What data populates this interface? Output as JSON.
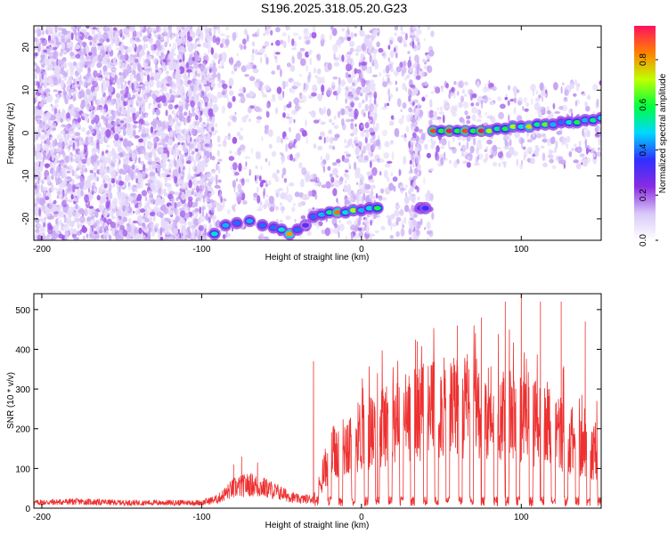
{
  "title": "S196.2025.318.05.20.G23",
  "chart_data": [
    {
      "type": "heatmap",
      "xlabel": "Height of straight line (km)",
      "ylabel": "Frequency (Hz)",
      "xlim": [
        -205,
        150
      ],
      "ylim": [
        -25,
        25
      ],
      "xticks": [
        -200,
        -100,
        0,
        100
      ],
      "yticks": [
        -20,
        -10,
        0,
        10,
        20
      ],
      "colorbar": {
        "label": "Normalized spectral amplitude",
        "range": [
          0.0,
          0.95
        ],
        "ticks": [
          0.0,
          0.2,
          0.4,
          0.6,
          0.8
        ],
        "colors": [
          "#ffffff",
          "#d8c8f8",
          "#8a2be2",
          "#3030ff",
          "#00d8ff",
          "#00ff40",
          "#c0ff00",
          "#ff8000",
          "#ff1060"
        ]
      },
      "noise_regions": [
        {
          "x": [
            -205,
            -92
          ],
          "y": [
            -25,
            25
          ],
          "density": 1.0
        },
        {
          "x": [
            -92,
            45
          ],
          "y": [
            -25,
            25
          ],
          "density": 0.25
        },
        {
          "x": [
            -10,
            10
          ],
          "y": [
            -25,
            25
          ],
          "density": 0.35
        },
        {
          "x": [
            30,
            36
          ],
          "y": [
            -25,
            25
          ],
          "density": 0.9
        },
        {
          "x": [
            45,
            150
          ],
          "y": [
            -8,
            12
          ],
          "density": 0.35
        }
      ],
      "ridge": [
        {
          "x": -92,
          "y": -23.5,
          "amp": 0.5
        },
        {
          "x": -85,
          "y": -21.5,
          "amp": 0.45
        },
        {
          "x": -78,
          "y": -21,
          "amp": 0.4
        },
        {
          "x": -70,
          "y": -20.5,
          "amp": 0.45
        },
        {
          "x": -62,
          "y": -21.5,
          "amp": 0.4
        },
        {
          "x": -55,
          "y": -22,
          "amp": 0.4
        },
        {
          "x": -50,
          "y": -22.5,
          "amp": 0.5
        },
        {
          "x": -45,
          "y": -23.5,
          "amp": 0.8
        },
        {
          "x": -40,
          "y": -22.5,
          "amp": 0.4
        },
        {
          "x": -35,
          "y": -21.5,
          "amp": 0.3
        },
        {
          "x": -30,
          "y": -19.5,
          "amp": 0.4
        },
        {
          "x": -25,
          "y": -19,
          "amp": 0.45
        },
        {
          "x": -20,
          "y": -18.5,
          "amp": 0.55
        },
        {
          "x": -15,
          "y": -18.5,
          "amp": 0.85
        },
        {
          "x": -10,
          "y": -18.5,
          "amp": 0.5
        },
        {
          "x": -5,
          "y": -18,
          "amp": 0.7
        },
        {
          "x": 0,
          "y": -18,
          "amp": 0.45
        },
        {
          "x": 5,
          "y": -17.5,
          "amp": 0.5
        },
        {
          "x": 10,
          "y": -17.5,
          "amp": 0.6
        },
        {
          "x": 37,
          "y": -17.5,
          "amp": 0.35
        },
        {
          "x": 40,
          "y": -17.5,
          "amp": 0.35
        },
        {
          "x": 45,
          "y": 0.5,
          "amp": 0.9
        },
        {
          "x": 50,
          "y": 0.5,
          "amp": 0.6
        },
        {
          "x": 55,
          "y": 0.5,
          "amp": 0.95
        },
        {
          "x": 60,
          "y": 0.5,
          "amp": 0.6
        },
        {
          "x": 65,
          "y": 0.5,
          "amp": 0.9
        },
        {
          "x": 70,
          "y": 0.5,
          "amp": 0.6
        },
        {
          "x": 75,
          "y": 0.5,
          "amp": 0.95
        },
        {
          "x": 80,
          "y": 0.5,
          "amp": 0.7
        },
        {
          "x": 85,
          "y": 1,
          "amp": 0.55
        },
        {
          "x": 90,
          "y": 1,
          "amp": 0.6
        },
        {
          "x": 95,
          "y": 1.5,
          "amp": 0.7
        },
        {
          "x": 100,
          "y": 1.5,
          "amp": 0.5
        },
        {
          "x": 105,
          "y": 1.5,
          "amp": 0.75
        },
        {
          "x": 110,
          "y": 2,
          "amp": 0.55
        },
        {
          "x": 115,
          "y": 2,
          "amp": 0.65
        },
        {
          "x": 120,
          "y": 2,
          "amp": 0.45
        },
        {
          "x": 125,
          "y": 2.5,
          "amp": 0.4
        },
        {
          "x": 130,
          "y": 2.5,
          "amp": 0.5
        },
        {
          "x": 135,
          "y": 2.5,
          "amp": 0.6
        },
        {
          "x": 140,
          "y": 3,
          "amp": 0.45
        },
        {
          "x": 145,
          "y": 3,
          "amp": 0.55
        },
        {
          "x": 150,
          "y": 3.5,
          "amp": 0.5
        }
      ]
    },
    {
      "type": "line",
      "xlabel": "Height of straight line (km)",
      "ylabel": "SNR (10 * v/v)",
      "xlim": [
        -205,
        150
      ],
      "ylim": [
        0,
        540
      ],
      "xticks": [
        -200,
        -100,
        0,
        100
      ],
      "yticks": [
        0,
        100,
        200,
        300,
        400,
        500
      ],
      "series_color": "#ee3030",
      "envelope": {
        "x": [
          -205,
          -180,
          -150,
          -120,
          -100,
          -90,
          -80,
          -70,
          -60,
          -50,
          -40,
          -30,
          -28,
          -25,
          -20,
          -10,
          0,
          10,
          20,
          30,
          40,
          50,
          60,
          70,
          80,
          90,
          100,
          110,
          120,
          130,
          140,
          150
        ],
        "y": [
          15,
          18,
          15,
          15,
          15,
          25,
          55,
          65,
          55,
          40,
          25,
          25,
          40,
          80,
          140,
          170,
          200,
          220,
          240,
          255,
          265,
          270,
          275,
          275,
          270,
          255,
          240,
          230,
          215,
          190,
          160,
          150
        ]
      },
      "peaks": [
        {
          "x": -80,
          "y": 110
        },
        {
          "x": -75,
          "y": 130
        },
        {
          "x": -65,
          "y": 115
        },
        {
          "x": -30,
          "y": 370
        },
        {
          "x": 10,
          "y": 340
        },
        {
          "x": 35,
          "y": 420
        },
        {
          "x": 60,
          "y": 460
        },
        {
          "x": 75,
          "y": 480
        },
        {
          "x": 90,
          "y": 520
        },
        {
          "x": 100,
          "y": 540
        },
        {
          "x": 112,
          "y": 520
        },
        {
          "x": 125,
          "y": 520
        },
        {
          "x": 140,
          "y": 470
        }
      ],
      "bursts": [
        {
          "x": -28,
          "w": 1.2
        },
        {
          "x": -20,
          "w": 1.2
        },
        {
          "x": -13,
          "w": 1.2
        },
        {
          "x": -5,
          "w": 1.2
        },
        {
          "x": 3,
          "w": 1.2
        },
        {
          "x": 10,
          "w": 1.2
        },
        {
          "x": 18,
          "w": 1.2
        },
        {
          "x": 25,
          "w": 1.2
        },
        {
          "x": 32,
          "w": 1.2
        },
        {
          "x": 40,
          "w": 1.2
        },
        {
          "x": 47,
          "w": 1.2
        },
        {
          "x": 54,
          "w": 1.2
        },
        {
          "x": 62,
          "w": 1.2
        },
        {
          "x": 69,
          "w": 1.2
        },
        {
          "x": 76,
          "w": 1.2
        },
        {
          "x": 84,
          "w": 1.2
        },
        {
          "x": 91,
          "w": 1.2
        },
        {
          "x": 98,
          "w": 1.2
        },
        {
          "x": 106,
          "w": 1.2
        },
        {
          "x": 113,
          "w": 1.2
        },
        {
          "x": 120,
          "w": 1.2
        },
        {
          "x": 128,
          "w": 1.2
        },
        {
          "x": 135,
          "w": 1.2
        },
        {
          "x": 142,
          "w": 1.2
        },
        {
          "x": 149,
          "w": 1.2
        }
      ]
    }
  ]
}
